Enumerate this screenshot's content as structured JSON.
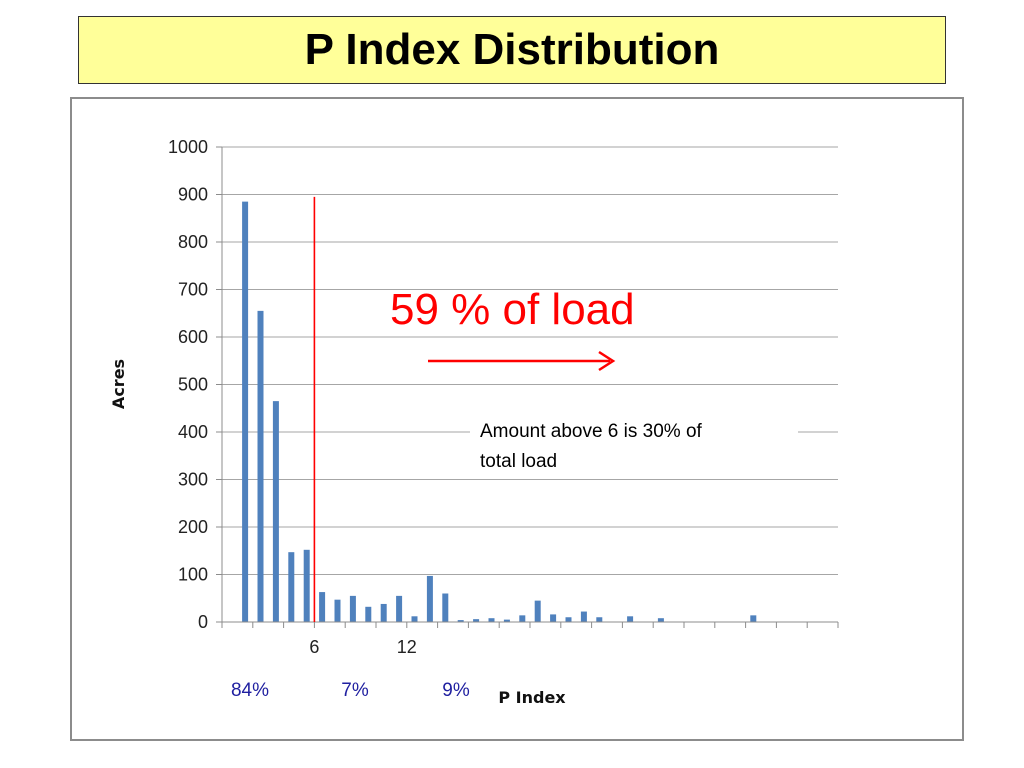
{
  "page": {
    "title": "P Index Distribution"
  },
  "chart_data": {
    "type": "bar",
    "title": "",
    "xlabel": "P Index",
    "ylabel": "Acres",
    "ylim": [
      0,
      1000
    ],
    "yticks": [
      0,
      100,
      200,
      300,
      400,
      500,
      600,
      700,
      800,
      900,
      1000
    ],
    "xtick_labels": [
      {
        "label": "6",
        "x": 6
      },
      {
        "label": "12",
        "x": 12
      }
    ],
    "grid": true,
    "bar_color": "#4f81bd",
    "x": [
      1.5,
      2.5,
      3.5,
      4.5,
      5.5,
      6.5,
      7.5,
      8.5,
      9.5,
      10.5,
      11.5,
      12.5,
      13.5,
      14.5,
      15.5,
      16.5,
      17.5,
      18.5,
      19.5,
      20.5,
      21.5,
      22.5,
      23.5,
      24.5,
      26.5,
      28.5,
      30.5,
      34.5
    ],
    "values": [
      885,
      655,
      465,
      147,
      152,
      63,
      47,
      55,
      32,
      38,
      55,
      12,
      97,
      60,
      4,
      6,
      8,
      5,
      14,
      45,
      16,
      10,
      22,
      10,
      12,
      8,
      0,
      14
    ],
    "reference_line": {
      "x": 6,
      "ymax": 895,
      "color": "#ff0000"
    },
    "annotations": {
      "load_text": "59 % of load",
      "note_line1": "Amount above 6 is 30% of",
      "note_line2": "total load",
      "pct_below_6": "84%",
      "pct_6_to_12": "7%",
      "pct_above_12": "9%"
    },
    "annotation_color": "#ff0000",
    "percent_color": "#1f1fa0"
  }
}
